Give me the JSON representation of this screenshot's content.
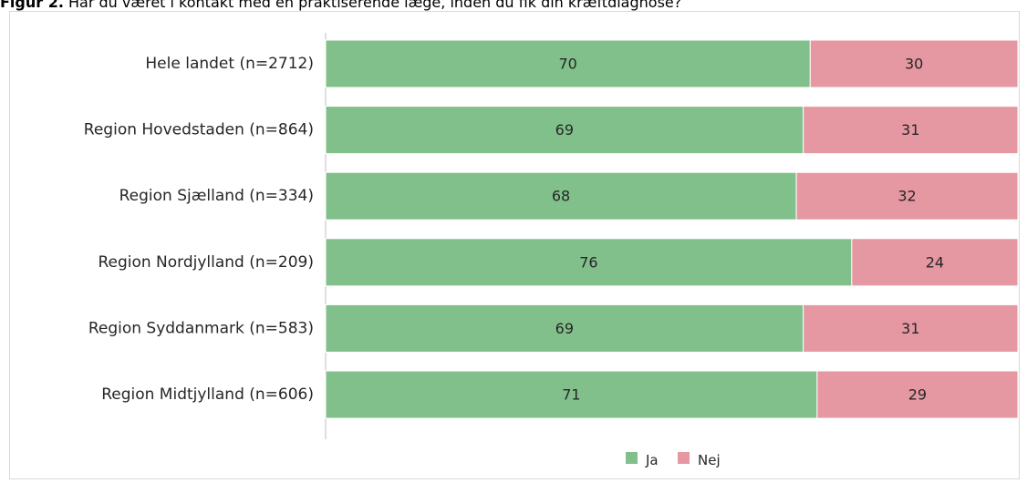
{
  "title": {
    "lead": "Figur 2.",
    "text": " Har du været i kontakt med en praktiserende læge, inden du fik din kræftdiagnose?"
  },
  "chart_data": {
    "type": "bar",
    "orientation": "horizontal",
    "stacked": true,
    "categories": [
      "Hele landet (n=2712)",
      "Region Hovedstaden (n=864)",
      "Region Sjælland (n=334)",
      "Region Nordjylland (n=209)",
      "Region Syddanmark (n=583)",
      "Region Midtjylland (n=606)"
    ],
    "series": [
      {
        "name": "Ja",
        "color": "#82c08b",
        "values": [
          70,
          69,
          68,
          76,
          69,
          71
        ]
      },
      {
        "name": "Nej",
        "color": "#e597a2",
        "values": [
          30,
          31,
          32,
          24,
          31,
          29
        ]
      }
    ],
    "xlim": [
      0,
      100
    ],
    "legend_position": "bottom",
    "grid": false
  }
}
